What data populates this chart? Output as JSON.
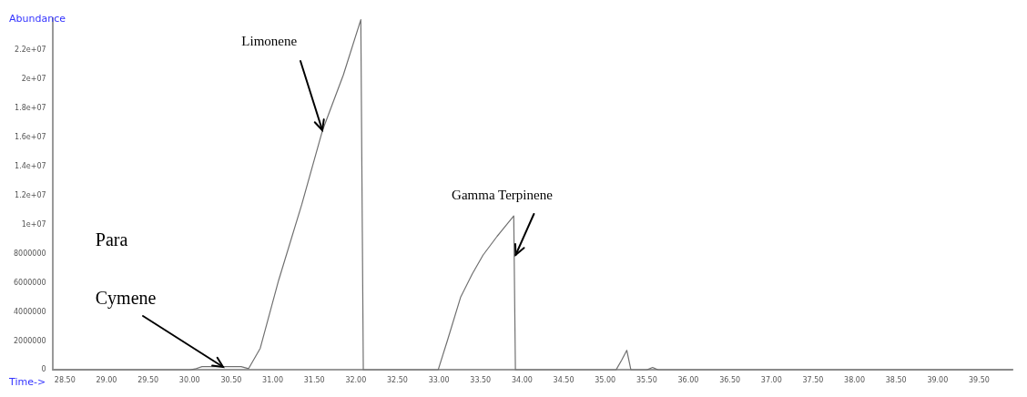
{
  "chart_data": {
    "type": "line",
    "xlabel": "Time->",
    "ylabel": "Abundance",
    "xlim": [
      28.35,
      39.9
    ],
    "ylim": [
      0,
      24200000
    ],
    "xticks": [
      {
        "value": 28.5,
        "label": "28.50"
      },
      {
        "value": 29,
        "label": "29.00"
      },
      {
        "value": 29.5,
        "label": "29.50"
      },
      {
        "value": 30,
        "label": "30.00"
      },
      {
        "value": 30.5,
        "label": "30.50"
      },
      {
        "value": 31,
        "label": "31.00"
      },
      {
        "value": 31.5,
        "label": "31.50"
      },
      {
        "value": 32,
        "label": "32.00"
      },
      {
        "value": 32.5,
        "label": "32.50"
      },
      {
        "value": 33,
        "label": "33.00"
      },
      {
        "value": 33.5,
        "label": "33.50"
      },
      {
        "value": 34,
        "label": "34.00"
      },
      {
        "value": 34.5,
        "label": "34.50"
      },
      {
        "value": 35,
        "label": "35.00"
      },
      {
        "value": 35.5,
        "label": "35.50"
      },
      {
        "value": 36,
        "label": "36.00"
      },
      {
        "value": 36.5,
        "label": "36.50"
      },
      {
        "value": 37,
        "label": "37.00"
      },
      {
        "value": 37.5,
        "label": "37.50"
      },
      {
        "value": 38,
        "label": "38.00"
      },
      {
        "value": 38.5,
        "label": "38.50"
      },
      {
        "value": 39,
        "label": "39.00"
      },
      {
        "value": 39.5,
        "label": "39.50"
      }
    ],
    "yticks": [
      0,
      2000000,
      4000000,
      6000000,
      8000000,
      {
        "value": 10000000,
        "label": "1e+07"
      },
      {
        "value": 12000000,
        "label": "1.2e+07"
      },
      {
        "value": 14000000,
        "label": "1.4e+07"
      },
      {
        "value": 16000000,
        "label": "1.6e+07"
      },
      {
        "value": 18000000,
        "label": "1.8e+07"
      },
      {
        "value": 20000000,
        "label": "2e+07"
      },
      {
        "value": 22000000,
        "label": "2.2e+07"
      }
    ],
    "series": [
      {
        "color": "#707070",
        "x": [
          28.35,
          30.0,
          30.08,
          30.15,
          30.4,
          30.62,
          30.71,
          30.85,
          31.07,
          31.35,
          31.6,
          31.85,
          32.06,
          32.09,
          32.2,
          32.99,
          33.1,
          33.26,
          33.4,
          33.53,
          33.7,
          33.9,
          33.92,
          34.0,
          35.13,
          35.2,
          35.26,
          35.31,
          35.5,
          35.57,
          35.64,
          39.9
        ],
        "values": [
          0,
          0,
          100000,
          240000,
          240000,
          240000,
          100000,
          1500000,
          6150000,
          11400000,
          16500000,
          20300000,
          24100000,
          0,
          0,
          0,
          2000000,
          5000000,
          6600000,
          7900000,
          9200000,
          10600000,
          0,
          0,
          0,
          700000,
          1360000,
          0,
          0,
          180000,
          0,
          0
        ]
      }
    ],
    "marker": "none",
    "line_style": "solid",
    "grid": false,
    "legend": false,
    "annotations": [
      {
        "text": "Limonene",
        "x": 31.6,
        "y": 16500000
      },
      {
        "text": "Gamma Terpinene",
        "x": 33.92,
        "y": 7900000
      },
      {
        "text": "Cymene",
        "x": 30.4,
        "y": 240000
      },
      "Para"
    ]
  }
}
